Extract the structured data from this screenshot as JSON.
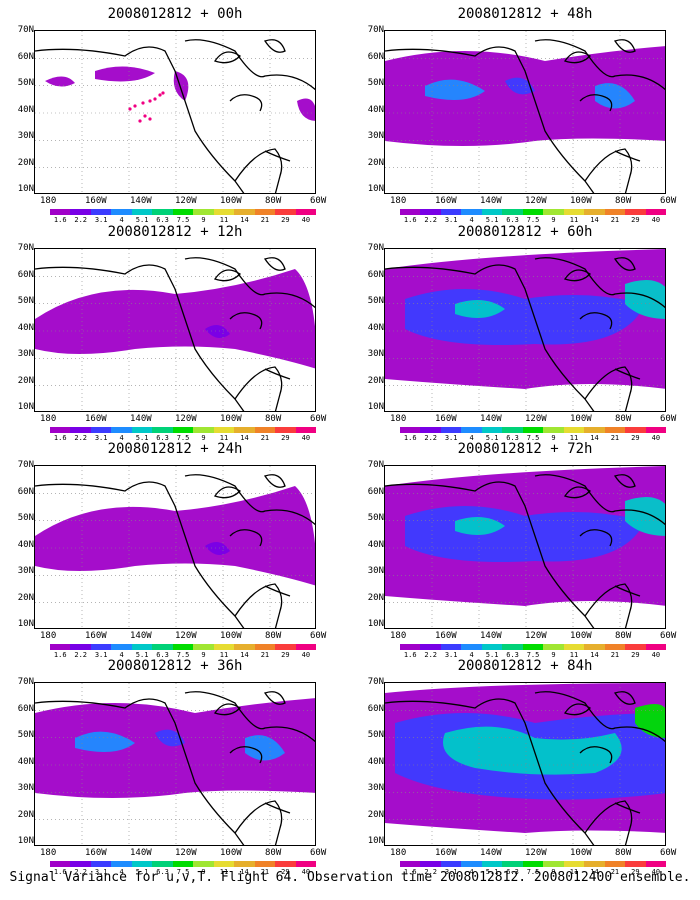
{
  "caption": "Signal Variance for u,v,T. Flight 64. Observation time 2008012812. 2008012400 ensemble.",
  "y_axis_labels": [
    "70N",
    "60N",
    "50N",
    "40N",
    "30N",
    "20N",
    "10N"
  ],
  "x_axis_labels": [
    "180",
    "160W",
    "140W",
    "120W",
    "100W",
    "80W",
    "60W"
  ],
  "colorbar": {
    "labels": [
      "1.6",
      "2.2",
      "3.1",
      "4",
      "5.1",
      "6.3",
      "7.5",
      "9",
      "11",
      "14",
      "21",
      "29",
      "40"
    ],
    "colors": [
      "#a000c8",
      "#7800e6",
      "#3c3cff",
      "#1e8cff",
      "#00c8c8",
      "#00d278",
      "#00dc00",
      "#a0e632",
      "#e6dc32",
      "#e6af2d",
      "#f08228",
      "#fa3c3c",
      "#f00082"
    ]
  },
  "panels": [
    {
      "title": "2008012812 + 00h",
      "level": 0
    },
    {
      "title": "2008012812 + 48h",
      "level": 2
    },
    {
      "title": "2008012812 + 12h",
      "level": 1
    },
    {
      "title": "2008012812 + 60h",
      "level": 3
    },
    {
      "title": "2008012812 + 24h",
      "level": 1
    },
    {
      "title": "2008012812 + 72h",
      "level": 3
    },
    {
      "title": "2008012812 + 36h",
      "level": 2
    },
    {
      "title": "2008012812 + 84h",
      "level": 4
    }
  ]
}
